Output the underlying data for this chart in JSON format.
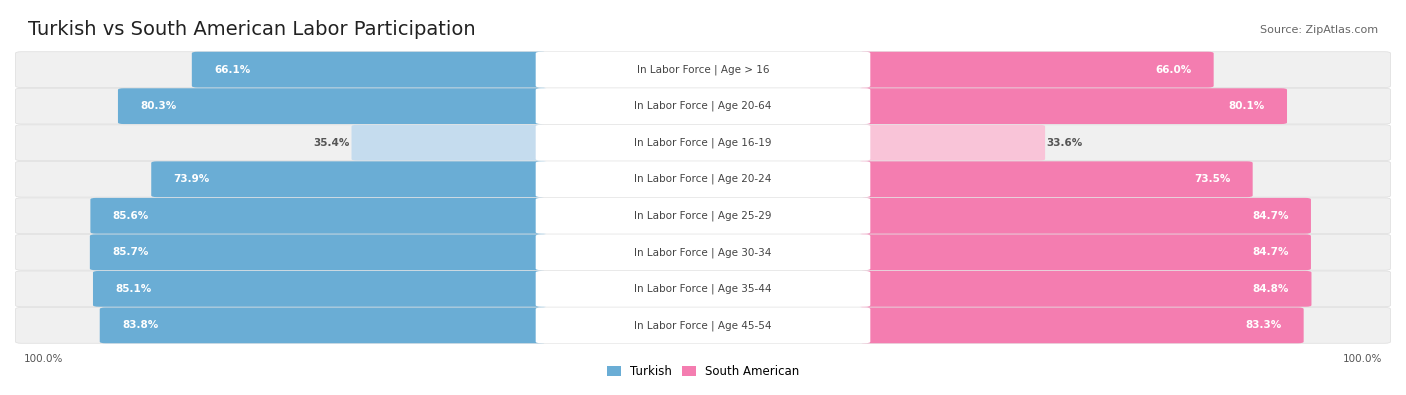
{
  "title": "Turkish vs South American Labor Participation",
  "source": "Source: ZipAtlas.com",
  "categories": [
    "In Labor Force | Age > 16",
    "In Labor Force | Age 20-64",
    "In Labor Force | Age 16-19",
    "In Labor Force | Age 20-24",
    "In Labor Force | Age 25-29",
    "In Labor Force | Age 30-34",
    "In Labor Force | Age 35-44",
    "In Labor Force | Age 45-54"
  ],
  "turkish_values": [
    66.1,
    80.3,
    35.4,
    73.9,
    85.6,
    85.7,
    85.1,
    83.8
  ],
  "south_american_values": [
    66.0,
    80.1,
    33.6,
    73.5,
    84.7,
    84.7,
    84.8,
    83.3
  ],
  "turkish_color": "#6aadd5",
  "turkish_color_light": "#c5dcee",
  "south_american_color": "#f47db0",
  "south_american_color_light": "#f9c4d8",
  "row_bg_color": "#f0f0f0",
  "max_value": 100.0,
  "legend_turkish": "Turkish",
  "legend_south_american": "South American",
  "title_fontsize": 14,
  "source_fontsize": 8,
  "value_fontsize": 7.5,
  "cat_fontsize": 7.5
}
